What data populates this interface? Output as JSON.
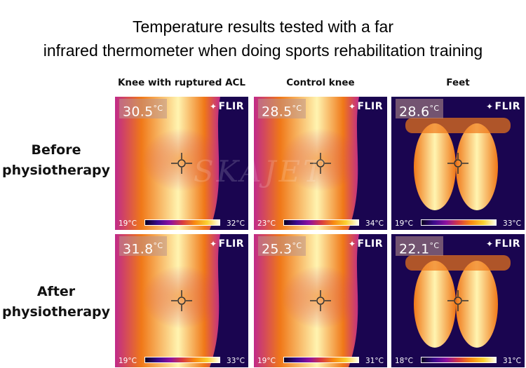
{
  "title": {
    "line1": "Temperature results tested with a far",
    "line2": "infrared thermometer when doing sports rehabilitation training"
  },
  "columns": [
    {
      "label": "Knee with ruptured ACL"
    },
    {
      "label": "Control knee"
    },
    {
      "label": "Feet"
    }
  ],
  "rows": [
    {
      "label_line1": "Before",
      "label_line2": "physiotherapy"
    },
    {
      "label_line1": "After",
      "label_line2": "physiotherapy"
    }
  ],
  "brand": "FLIR",
  "watermark": "SKAJET",
  "images": [
    {
      "temp": "30.5",
      "unit": "°C",
      "min": "19°C",
      "max": "32°C",
      "subject": "knee"
    },
    {
      "temp": "28.5",
      "unit": "°C",
      "min": "23°C",
      "max": "34°C",
      "subject": "knee"
    },
    {
      "temp": "28.6",
      "unit": "°C",
      "min": "19°C",
      "max": "33°C",
      "subject": "feet"
    },
    {
      "temp": "31.8",
      "unit": "°C",
      "min": "19°C",
      "max": "33°C",
      "subject": "knee"
    },
    {
      "temp": "25.3",
      "unit": "°C",
      "min": "19°C",
      "max": "31°C",
      "subject": "knee"
    },
    {
      "temp": "22.1",
      "unit": "°C",
      "min": "18°C",
      "max": "31°C",
      "subject": "feet"
    }
  ],
  "colors": {
    "thermal_cold": "#1a0550",
    "thermal_mid": "#c02a8a",
    "thermal_warm": "#f07818",
    "thermal_hot": "#fff4b0"
  }
}
